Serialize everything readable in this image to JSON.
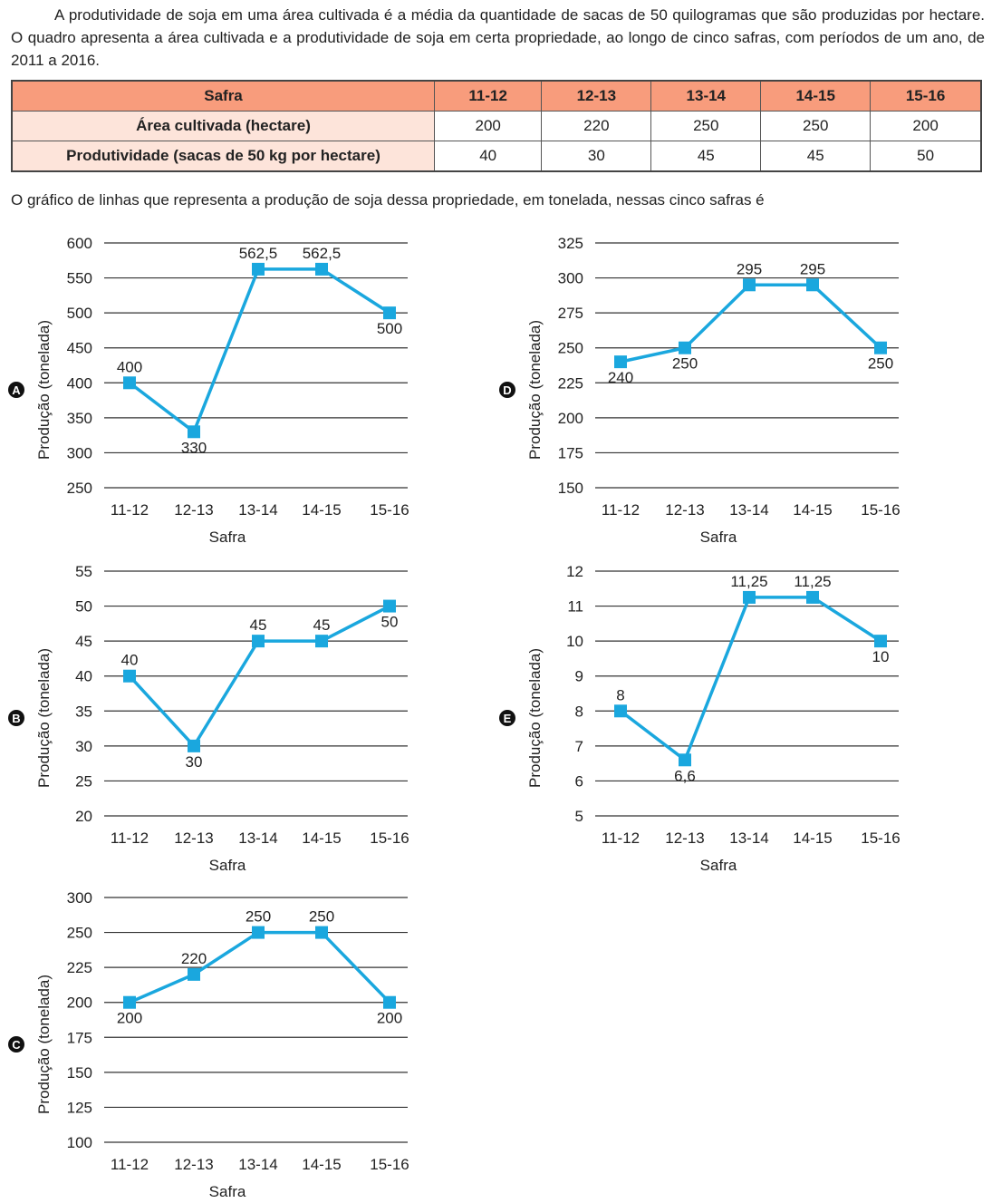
{
  "intro": "A produtividade de soja em uma área cultivada é a média da quantidade de sacas de 50 quilogramas que são produzidas por hectare. O quadro apresenta a área cultivada e a produtividade de soja em certa propriedade, ao longo de cinco safras, com períodos de um ano, de 2011 a 2016.",
  "table": {
    "header": [
      "Safra",
      "11-12",
      "12-13",
      "13-14",
      "14-15",
      "15-16"
    ],
    "rows": [
      [
        "Área cultivada (hectare)",
        "200",
        "220",
        "250",
        "250",
        "200"
      ],
      [
        "Produtividade (sacas de 50 kg por hectare)",
        "40",
        "30",
        "45",
        "45",
        "50"
      ]
    ],
    "colors": {
      "header": "#f89c7c",
      "row_header": "#fde4da"
    }
  },
  "question": "O gráfico de linhas que representa a produção de soja dessa propriedade, em tonelada, nessas cinco safras é",
  "chart_data": [
    {
      "option": "A",
      "type": "line",
      "categories": [
        "11-12",
        "12-13",
        "13-14",
        "14-15",
        "15-16"
      ],
      "values": [
        400,
        330,
        562.5,
        562.5,
        500
      ],
      "data_labels": [
        "400",
        "330",
        "562,5",
        "562,5",
        "500"
      ],
      "yticks": [
        "250",
        "300",
        "350",
        "400",
        "450",
        "500",
        "550",
        "600"
      ],
      "ylim": [
        250,
        600
      ],
      "xlabel": "Safra",
      "ylabel": "Produção (tonelada)",
      "grid": true,
      "color": "#1aa7de"
    },
    {
      "option": "B",
      "type": "line",
      "categories": [
        "11-12",
        "12-13",
        "13-14",
        "14-15",
        "15-16"
      ],
      "values": [
        40,
        30,
        45,
        45,
        50
      ],
      "data_labels": [
        "40",
        "30",
        "45",
        "45",
        "50"
      ],
      "yticks": [
        "20",
        "25",
        "30",
        "35",
        "40",
        "45",
        "50",
        "55"
      ],
      "ylim": [
        20,
        55
      ],
      "xlabel": "Safra",
      "ylabel": "Produção (tonelada)",
      "grid": true,
      "color": "#1aa7de"
    },
    {
      "option": "C",
      "type": "line",
      "categories": [
        "11-12",
        "12-13",
        "13-14",
        "14-15",
        "15-16"
      ],
      "values": [
        200,
        220,
        250,
        250,
        200
      ],
      "data_labels": [
        "200",
        "220",
        "250",
        "250",
        "200"
      ],
      "yticks": [
        "100",
        "125",
        "150",
        "175",
        "200",
        "225",
        "250",
        "300"
      ],
      "ylim": [
        100,
        300
      ],
      "xlabel": "Safra",
      "ylabel": "Produção (tonelada)",
      "grid": true,
      "color": "#1aa7de"
    },
    {
      "option": "D",
      "type": "line",
      "categories": [
        "11-12",
        "12-13",
        "13-14",
        "14-15",
        "15-16"
      ],
      "values": [
        240,
        250,
        295,
        295,
        250
      ],
      "data_labels": [
        "240",
        "250",
        "295",
        "295",
        "250"
      ],
      "yticks": [
        "150",
        "175",
        "200",
        "225",
        "250",
        "275",
        "300",
        "325"
      ],
      "ylim": [
        150,
        325
      ],
      "xlabel": "Safra",
      "ylabel": "Produção (tonelada)",
      "grid": true,
      "color": "#1aa7de"
    },
    {
      "option": "E",
      "type": "line",
      "categories": [
        "11-12",
        "12-13",
        "13-14",
        "14-15",
        "15-16"
      ],
      "values": [
        8,
        6.6,
        11.25,
        11.25,
        10
      ],
      "data_labels": [
        "8",
        "6,6",
        "11,25",
        "11,25",
        "10"
      ],
      "yticks": [
        "5",
        "6",
        "7",
        "8",
        "9",
        "10",
        "11",
        "12"
      ],
      "ylim": [
        5,
        12
      ],
      "xlabel": "Safra",
      "ylabel": "Produção (tonelada)",
      "grid": true,
      "color": "#1aa7de"
    }
  ]
}
